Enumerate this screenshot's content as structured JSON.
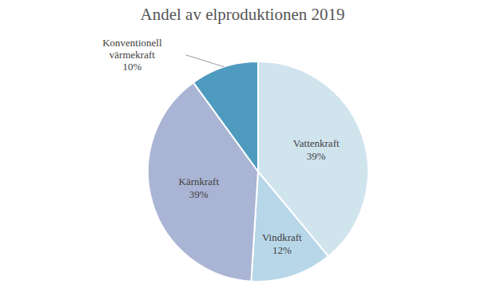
{
  "chart_data": {
    "type": "pie",
    "title": "Andel av elproduktionen 2019",
    "categories": [
      "Vattenkraft",
      "Vindkraft",
      "Kärnkraft",
      "Konventionell värmekraft"
    ],
    "values": [
      39,
      12,
      39,
      10
    ],
    "value_labels": [
      "39%",
      "12%",
      "39%",
      "10%"
    ],
    "colors": [
      "#d0e4ee",
      "#b7d7e8",
      "#aab4d4",
      "#4f9bbf"
    ],
    "data_labels": true
  }
}
